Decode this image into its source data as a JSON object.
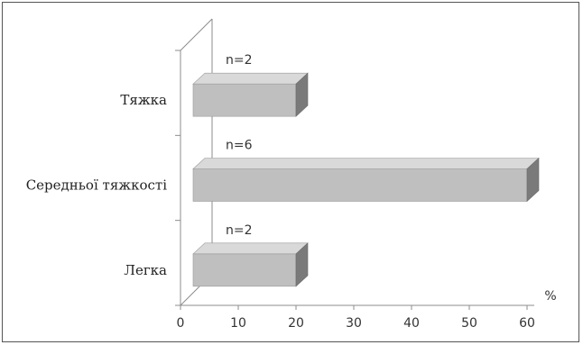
{
  "chart_data": {
    "type": "bar",
    "orientation": "horizontal",
    "style": "3d",
    "categories": [
      "Тяжка",
      "Середньої тяжкості",
      "Легка"
    ],
    "values": [
      20,
      60,
      20
    ],
    "data_labels": [
      "n=2",
      "n=6",
      "n=2"
    ],
    "x_ticks": [
      "0",
      "10",
      "20",
      "30",
      "40",
      "50",
      "60"
    ],
    "xlim": [
      0,
      60
    ],
    "x_unit": "%",
    "grid": false,
    "legend": "none",
    "bar_color": "#bfbfbf",
    "bar_side_color": "#7a7a7a",
    "bar_top_color": "#d9d9d9"
  }
}
